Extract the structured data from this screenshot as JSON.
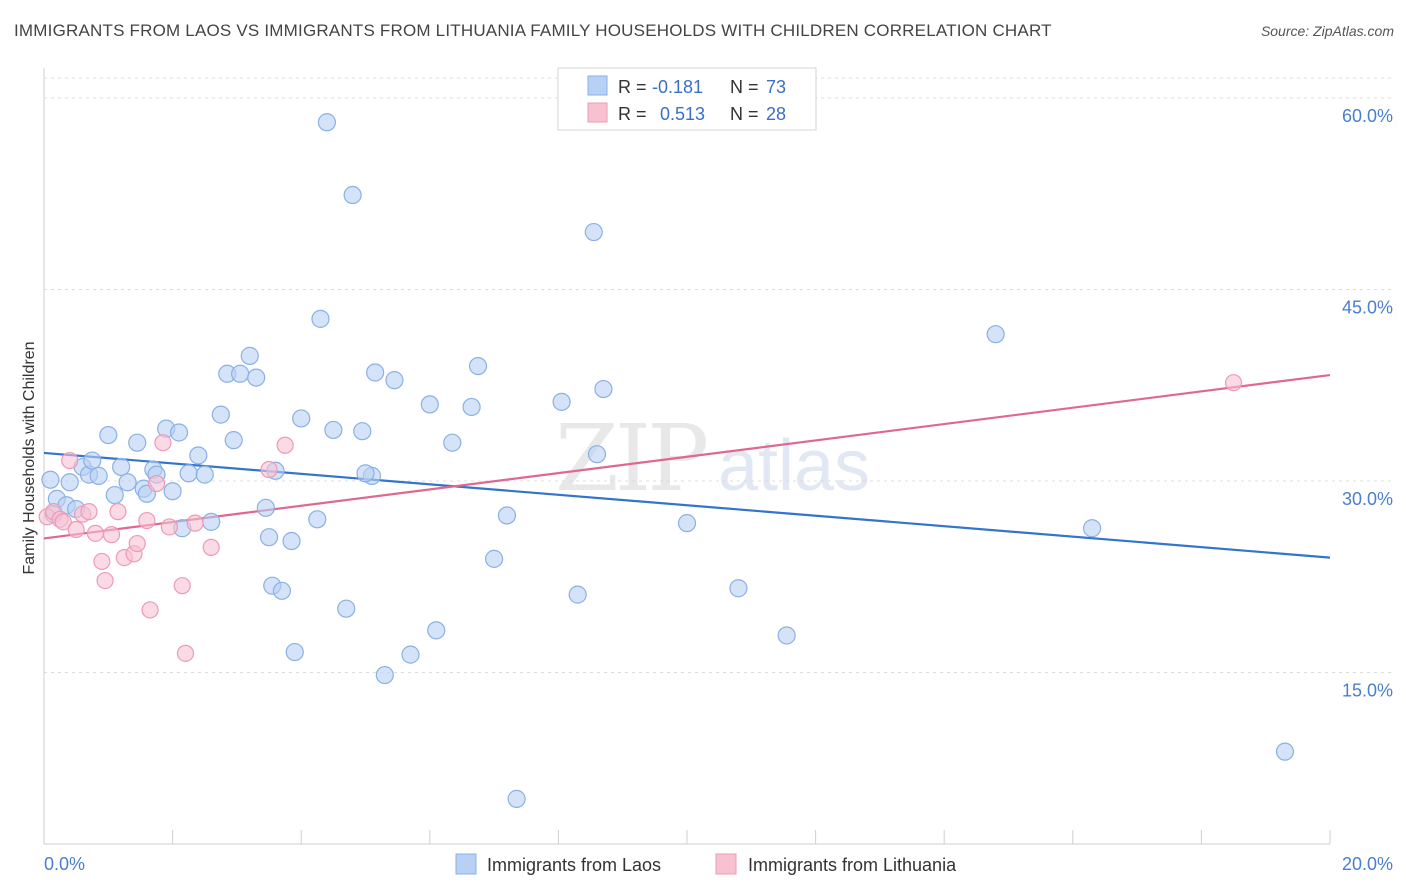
{
  "header": {
    "title": "IMMIGRANTS FROM LAOS VS IMMIGRANTS FROM LITHUANIA FAMILY HOUSEHOLDS WITH CHILDREN CORRELATION CHART",
    "source": "Source: ZipAtlas.com"
  },
  "watermark": {
    "zip": "ZIP",
    "atlas": "atlas"
  },
  "legend_top": {
    "r_label": "R =",
    "n_label": "N =",
    "series": [
      {
        "r": "-0.181",
        "n": "73"
      },
      {
        "r": "0.513",
        "n": "28"
      }
    ]
  },
  "colors": {
    "laos_fill": "#b8d0f4",
    "laos_stroke": "#8bb0e6",
    "laos_line": "#3374cc",
    "lith_fill": "#f7c1d2",
    "lith_stroke": "#ee9ab6",
    "lith_line": "#e06790",
    "grid": "#dcdcdc",
    "axis_label": "#4a7fd0"
  },
  "chart_data": {
    "type": "scatter",
    "title": "IMMIGRANTS FROM LAOS VS IMMIGRANTS FROM LITHUANIA FAMILY HOUSEHOLDS WITH CHILDREN CORRELATION CHART",
    "xlabel": "",
    "ylabel": "Family Households with Children",
    "xlim": [
      0,
      20
    ],
    "ylim": [
      0,
      60
    ],
    "x_tick_labels": [
      "0.0%",
      "20.0%"
    ],
    "y_ticks": [
      15,
      30,
      45,
      60
    ],
    "y_tick_labels": [
      "15.0%",
      "30.0%",
      "45.0%",
      "60.0%"
    ],
    "grid": true,
    "legend_position": "top-center",
    "series": [
      {
        "name": "Immigrants from Laos",
        "r": -0.181,
        "n": 73,
        "trend": {
          "x": [
            0,
            20
          ],
          "y": [
            32.2,
            24.0
          ]
        },
        "points": [
          [
            0.1,
            30.1
          ],
          [
            0.2,
            28.6
          ],
          [
            0.35,
            28.1
          ],
          [
            0.4,
            29.9
          ],
          [
            0.5,
            27.8
          ],
          [
            0.6,
            31.1
          ],
          [
            0.7,
            30.5
          ],
          [
            0.75,
            31.6
          ],
          [
            0.85,
            30.4
          ],
          [
            1.0,
            33.6
          ],
          [
            1.1,
            28.9
          ],
          [
            1.2,
            31.1
          ],
          [
            1.3,
            29.9
          ],
          [
            1.45,
            33.0
          ],
          [
            1.55,
            29.4
          ],
          [
            1.6,
            29.0
          ],
          [
            1.7,
            30.9
          ],
          [
            1.75,
            30.5
          ],
          [
            1.9,
            34.1
          ],
          [
            2.0,
            29.2
          ],
          [
            2.1,
            33.8
          ],
          [
            2.15,
            26.3
          ],
          [
            2.25,
            30.6
          ],
          [
            2.4,
            32.0
          ],
          [
            2.5,
            30.5
          ],
          [
            2.6,
            26.8
          ],
          [
            2.75,
            35.2
          ],
          [
            2.85,
            38.4
          ],
          [
            2.95,
            33.2
          ],
          [
            3.05,
            38.4
          ],
          [
            3.2,
            39.8
          ],
          [
            3.3,
            38.1
          ],
          [
            3.45,
            27.9
          ],
          [
            3.5,
            25.6
          ],
          [
            3.55,
            21.8
          ],
          [
            3.6,
            30.8
          ],
          [
            3.7,
            21.4
          ],
          [
            3.85,
            25.3
          ],
          [
            3.9,
            16.6
          ],
          [
            4.0,
            34.9
          ],
          [
            4.25,
            27.0
          ],
          [
            4.3,
            42.7
          ],
          [
            4.4,
            58.1
          ],
          [
            4.5,
            34.0
          ],
          [
            4.7,
            20.0
          ],
          [
            4.8,
            52.4
          ],
          [
            4.95,
            33.9
          ],
          [
            5.1,
            30.4
          ],
          [
            5.15,
            38.5
          ],
          [
            5.3,
            14.8
          ],
          [
            5.45,
            37.9
          ],
          [
            5.7,
            16.4
          ],
          [
            6.0,
            36.0
          ],
          [
            6.1,
            18.3
          ],
          [
            6.35,
            33.0
          ],
          [
            6.65,
            35.8
          ],
          [
            6.75,
            39.0
          ],
          [
            7.0,
            23.9
          ],
          [
            7.2,
            27.3
          ],
          [
            7.35,
            5.1
          ],
          [
            8.05,
            36.2
          ],
          [
            8.3,
            21.1
          ],
          [
            8.55,
            49.5
          ],
          [
            8.6,
            32.1
          ],
          [
            8.7,
            37.2
          ],
          [
            10.0,
            26.7
          ],
          [
            10.8,
            21.6
          ],
          [
            11.55,
            17.9
          ],
          [
            14.8,
            41.5
          ],
          [
            16.3,
            26.3
          ],
          [
            19.3,
            8.8
          ],
          [
            0.15,
            27.4
          ],
          [
            5.0,
            30.6
          ]
        ]
      },
      {
        "name": "Immigrants from Lithuania",
        "r": 0.513,
        "n": 28,
        "trend": {
          "x": [
            0,
            20
          ],
          "y": [
            25.5,
            38.3
          ]
        },
        "points": [
          [
            0.05,
            27.2
          ],
          [
            0.15,
            27.6
          ],
          [
            0.25,
            27.0
          ],
          [
            0.3,
            26.8
          ],
          [
            0.4,
            31.6
          ],
          [
            0.5,
            26.2
          ],
          [
            0.6,
            27.4
          ],
          [
            0.7,
            27.6
          ],
          [
            0.8,
            25.9
          ],
          [
            0.9,
            23.7
          ],
          [
            0.95,
            22.2
          ],
          [
            1.05,
            25.8
          ],
          [
            1.15,
            27.6
          ],
          [
            1.25,
            24.0
          ],
          [
            1.4,
            24.3
          ],
          [
            1.45,
            25.1
          ],
          [
            1.6,
            26.9
          ],
          [
            1.65,
            19.9
          ],
          [
            1.75,
            29.8
          ],
          [
            1.85,
            33.0
          ],
          [
            1.95,
            26.4
          ],
          [
            2.15,
            21.8
          ],
          [
            2.2,
            16.5
          ],
          [
            2.35,
            26.7
          ],
          [
            2.6,
            24.8
          ],
          [
            3.5,
            30.9
          ],
          [
            3.75,
            32.8
          ],
          [
            18.5,
            37.7
          ]
        ]
      }
    ]
  },
  "bottom_legend": {
    "items": [
      "Immigrants from Laos",
      "Immigrants from Lithuania"
    ]
  }
}
